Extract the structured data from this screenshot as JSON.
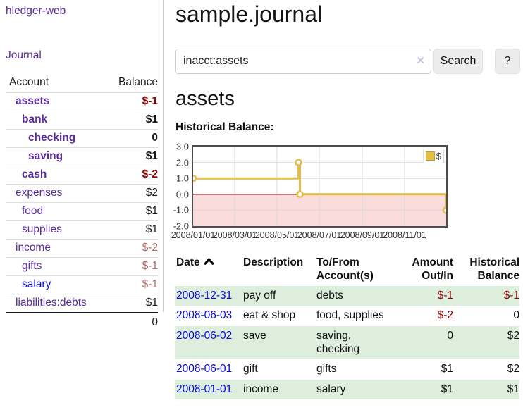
{
  "app": {
    "title": "hledger-web"
  },
  "sidebar": {
    "journal_link": "Journal",
    "table": {
      "headers": {
        "account": "Account",
        "balance": "Balance"
      },
      "rows": [
        {
          "label": "assets",
          "balance": "$-1",
          "depth": 1,
          "bold": true,
          "label_color": "purple",
          "balance_color": "neg-strong"
        },
        {
          "label": "bank",
          "balance": "$1",
          "depth": 2,
          "bold": true,
          "label_color": "purple",
          "balance_color": "plain"
        },
        {
          "label": "checking",
          "balance": "0",
          "depth": 3,
          "bold": true,
          "label_color": "purple",
          "balance_color": "plain"
        },
        {
          "label": "saving",
          "balance": "$1",
          "depth": 3,
          "bold": true,
          "label_color": "purple",
          "balance_color": "plain"
        },
        {
          "label": "cash",
          "balance": "$-2",
          "depth": 2,
          "bold": true,
          "label_color": "purple",
          "balance_color": "neg-strong"
        },
        {
          "label": "expenses",
          "balance": "$2",
          "depth": 1,
          "bold": false,
          "label_color": "purple",
          "balance_color": "plain"
        },
        {
          "label": "food",
          "balance": "$1",
          "depth": 2,
          "bold": false,
          "label_color": "purple",
          "balance_color": "plain"
        },
        {
          "label": "supplies",
          "balance": "$1",
          "depth": 2,
          "bold": false,
          "label_color": "purple",
          "balance_color": "plain"
        },
        {
          "label": "income",
          "balance": "$-2",
          "depth": 1,
          "bold": false,
          "label_color": "purple",
          "balance_color": "neg-soft"
        },
        {
          "label": "gifts",
          "balance": "$-1",
          "depth": 2,
          "bold": false,
          "label_color": "purple",
          "balance_color": "neg-soft"
        },
        {
          "label": "salary",
          "balance": "$-1",
          "depth": 2,
          "bold": false,
          "label_color": "blue",
          "balance_color": "neg-soft"
        },
        {
          "label": "liabilities:debts",
          "balance": "$1",
          "depth": 1,
          "bold": false,
          "label_color": "purple",
          "balance_color": "plain"
        }
      ],
      "total": "0"
    }
  },
  "header": {
    "title": "sample.journal"
  },
  "search": {
    "value": "inacct:assets",
    "clear_icon": "✕",
    "button_label": "Search",
    "help_label": "?"
  },
  "main": {
    "heading": "assets",
    "chart_label": "Historical Balance:"
  },
  "chart_data": {
    "type": "line",
    "title": "Historical Balance:",
    "step": true,
    "series": [
      {
        "name": "$",
        "color": "#e5bd49",
        "points": [
          [
            "2008-01-01",
            1
          ],
          [
            "2008-06-01",
            2
          ],
          [
            "2008-06-03",
            0
          ],
          [
            "2008-12-31",
            -1
          ]
        ]
      }
    ],
    "x_ticks": [
      "2008/01/01",
      "2008/03/01",
      "2008/05/01",
      "2008/07/01",
      "2008/09/01",
      "2008/11/01"
    ],
    "y_ticks": [
      3.0,
      2.0,
      1.0,
      0.0,
      -1.0,
      -2.0
    ],
    "ylim": [
      -2,
      3
    ],
    "xlim": [
      "2008-01-01",
      "2008-12-31"
    ],
    "grid": true,
    "negative_region_fill": "#fbdcdc",
    "zero_line_color": "#771616",
    "grid_color": "#d9d9d9",
    "legend_position": "top-right"
  },
  "register": {
    "headers": {
      "date": "Date",
      "description": "Description",
      "accounts": "To/From Account(s)",
      "amount": "Amount Out/In",
      "balance": "Historical Balance"
    },
    "rows": [
      {
        "date": "2008-12-31",
        "description": "pay off",
        "accounts": "debts",
        "amount": "$-1",
        "balance": "$-1",
        "amount_neg": true,
        "balance_neg": true,
        "green": true
      },
      {
        "date": "2008-06-03",
        "description": "eat & shop",
        "accounts": "food, supplies",
        "amount": "$-2",
        "balance": "0",
        "amount_neg": true,
        "balance_neg": false,
        "green": false
      },
      {
        "date": "2008-06-02",
        "description": "save",
        "accounts": "saving, checking",
        "amount": "0",
        "balance": "$2",
        "amount_neg": false,
        "balance_neg": false,
        "green": true
      },
      {
        "date": "2008-06-01",
        "description": "gift",
        "accounts": "gifts",
        "amount": "$1",
        "balance": "$2",
        "amount_neg": false,
        "balance_neg": false,
        "green": false
      },
      {
        "date": "2008-01-01",
        "description": "income",
        "accounts": "salary",
        "amount": "$1",
        "balance": "$1",
        "amount_neg": false,
        "balance_neg": false,
        "green": true
      }
    ]
  },
  "colors": {
    "link_purple": "#5a2b9a",
    "link_blue": "#1414d6",
    "date_blue": "#0909d6",
    "negative_strong": "#8b0000",
    "negative_soft": "#b26b6b",
    "row_green": "#ddeedd",
    "chart_gold": "#e5bd49",
    "chart_pink": "#fbdcdc"
  }
}
